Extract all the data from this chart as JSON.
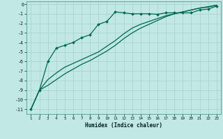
{
  "xlabel": "Humidex (Indice chaleur)",
  "background_color": "#c1e8e4",
  "grid_color": "#aad4d0",
  "line_color": "#006655",
  "xlim": [
    0.5,
    23.5
  ],
  "ylim": [
    -11.5,
    0.3
  ],
  "yticks": [
    0,
    -1,
    -2,
    -3,
    -4,
    -5,
    -6,
    -7,
    -8,
    -9,
    -10,
    -11
  ],
  "xticks": [
    1,
    2,
    3,
    4,
    5,
    6,
    7,
    8,
    9,
    10,
    11,
    12,
    13,
    14,
    15,
    16,
    17,
    18,
    19,
    20,
    21,
    22,
    23
  ],
  "series1_x": [
    1,
    2,
    3,
    4,
    5,
    6,
    7,
    8,
    9,
    10,
    11,
    12,
    13,
    14,
    15,
    16,
    17,
    18,
    19,
    20,
    21,
    22,
    23
  ],
  "series1_y": [
    -11.0,
    -9.0,
    -6.0,
    -4.6,
    -4.3,
    -4.0,
    -3.5,
    -3.2,
    -2.1,
    -1.8,
    -0.8,
    -0.9,
    -1.0,
    -1.0,
    -1.0,
    -1.05,
    -0.9,
    -0.9,
    -0.9,
    -0.9,
    -0.6,
    -0.5,
    -0.2
  ],
  "series2_x": [
    1,
    2,
    3,
    4,
    5,
    6,
    7,
    8,
    9,
    10,
    11,
    12,
    13,
    14,
    15,
    16,
    17,
    18,
    19,
    20,
    21,
    22,
    23
  ],
  "series2_y": [
    -11.0,
    -9.0,
    -7.9,
    -7.2,
    -6.6,
    -6.2,
    -5.8,
    -5.4,
    -5.0,
    -4.4,
    -3.8,
    -3.1,
    -2.5,
    -2.1,
    -1.8,
    -1.5,
    -1.2,
    -1.0,
    -0.8,
    -0.6,
    -0.4,
    -0.3,
    -0.1
  ],
  "series3_x": [
    1,
    2,
    3,
    4,
    5,
    6,
    7,
    8,
    9,
    10,
    11,
    12,
    13,
    14,
    15,
    16,
    17,
    18,
    19,
    20,
    21,
    22,
    23
  ],
  "series3_y": [
    -11.0,
    -9.0,
    -8.5,
    -7.9,
    -7.3,
    -6.8,
    -6.3,
    -5.9,
    -5.4,
    -4.9,
    -4.3,
    -3.6,
    -3.0,
    -2.5,
    -2.1,
    -1.7,
    -1.3,
    -1.0,
    -0.8,
    -0.6,
    -0.4,
    -0.25,
    -0.1
  ]
}
